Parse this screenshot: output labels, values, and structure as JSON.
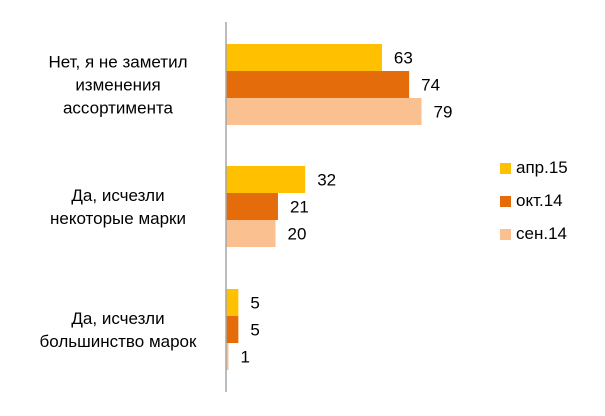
{
  "chart_data": {
    "type": "bar",
    "orientation": "horizontal",
    "categories": [
      [
        "Нет, я не заметил",
        "изменения",
        "ассортимента"
      ],
      [
        "Да, исчезли",
        "некоторые марки"
      ],
      [
        "Да, исчезли",
        "большинство марок"
      ]
    ],
    "series": [
      {
        "name": "апр.15",
        "color": "#ffc000",
        "values": [
          63,
          32,
          5
        ]
      },
      {
        "name": "окт.14",
        "color": "#e46c0a",
        "values": [
          74,
          21,
          5
        ]
      },
      {
        "name": "сен.14",
        "color": "#fac090",
        "values": [
          79,
          20,
          1
        ]
      }
    ],
    "xlim": [
      0,
      100
    ],
    "grid": false,
    "legend_position": "right"
  }
}
